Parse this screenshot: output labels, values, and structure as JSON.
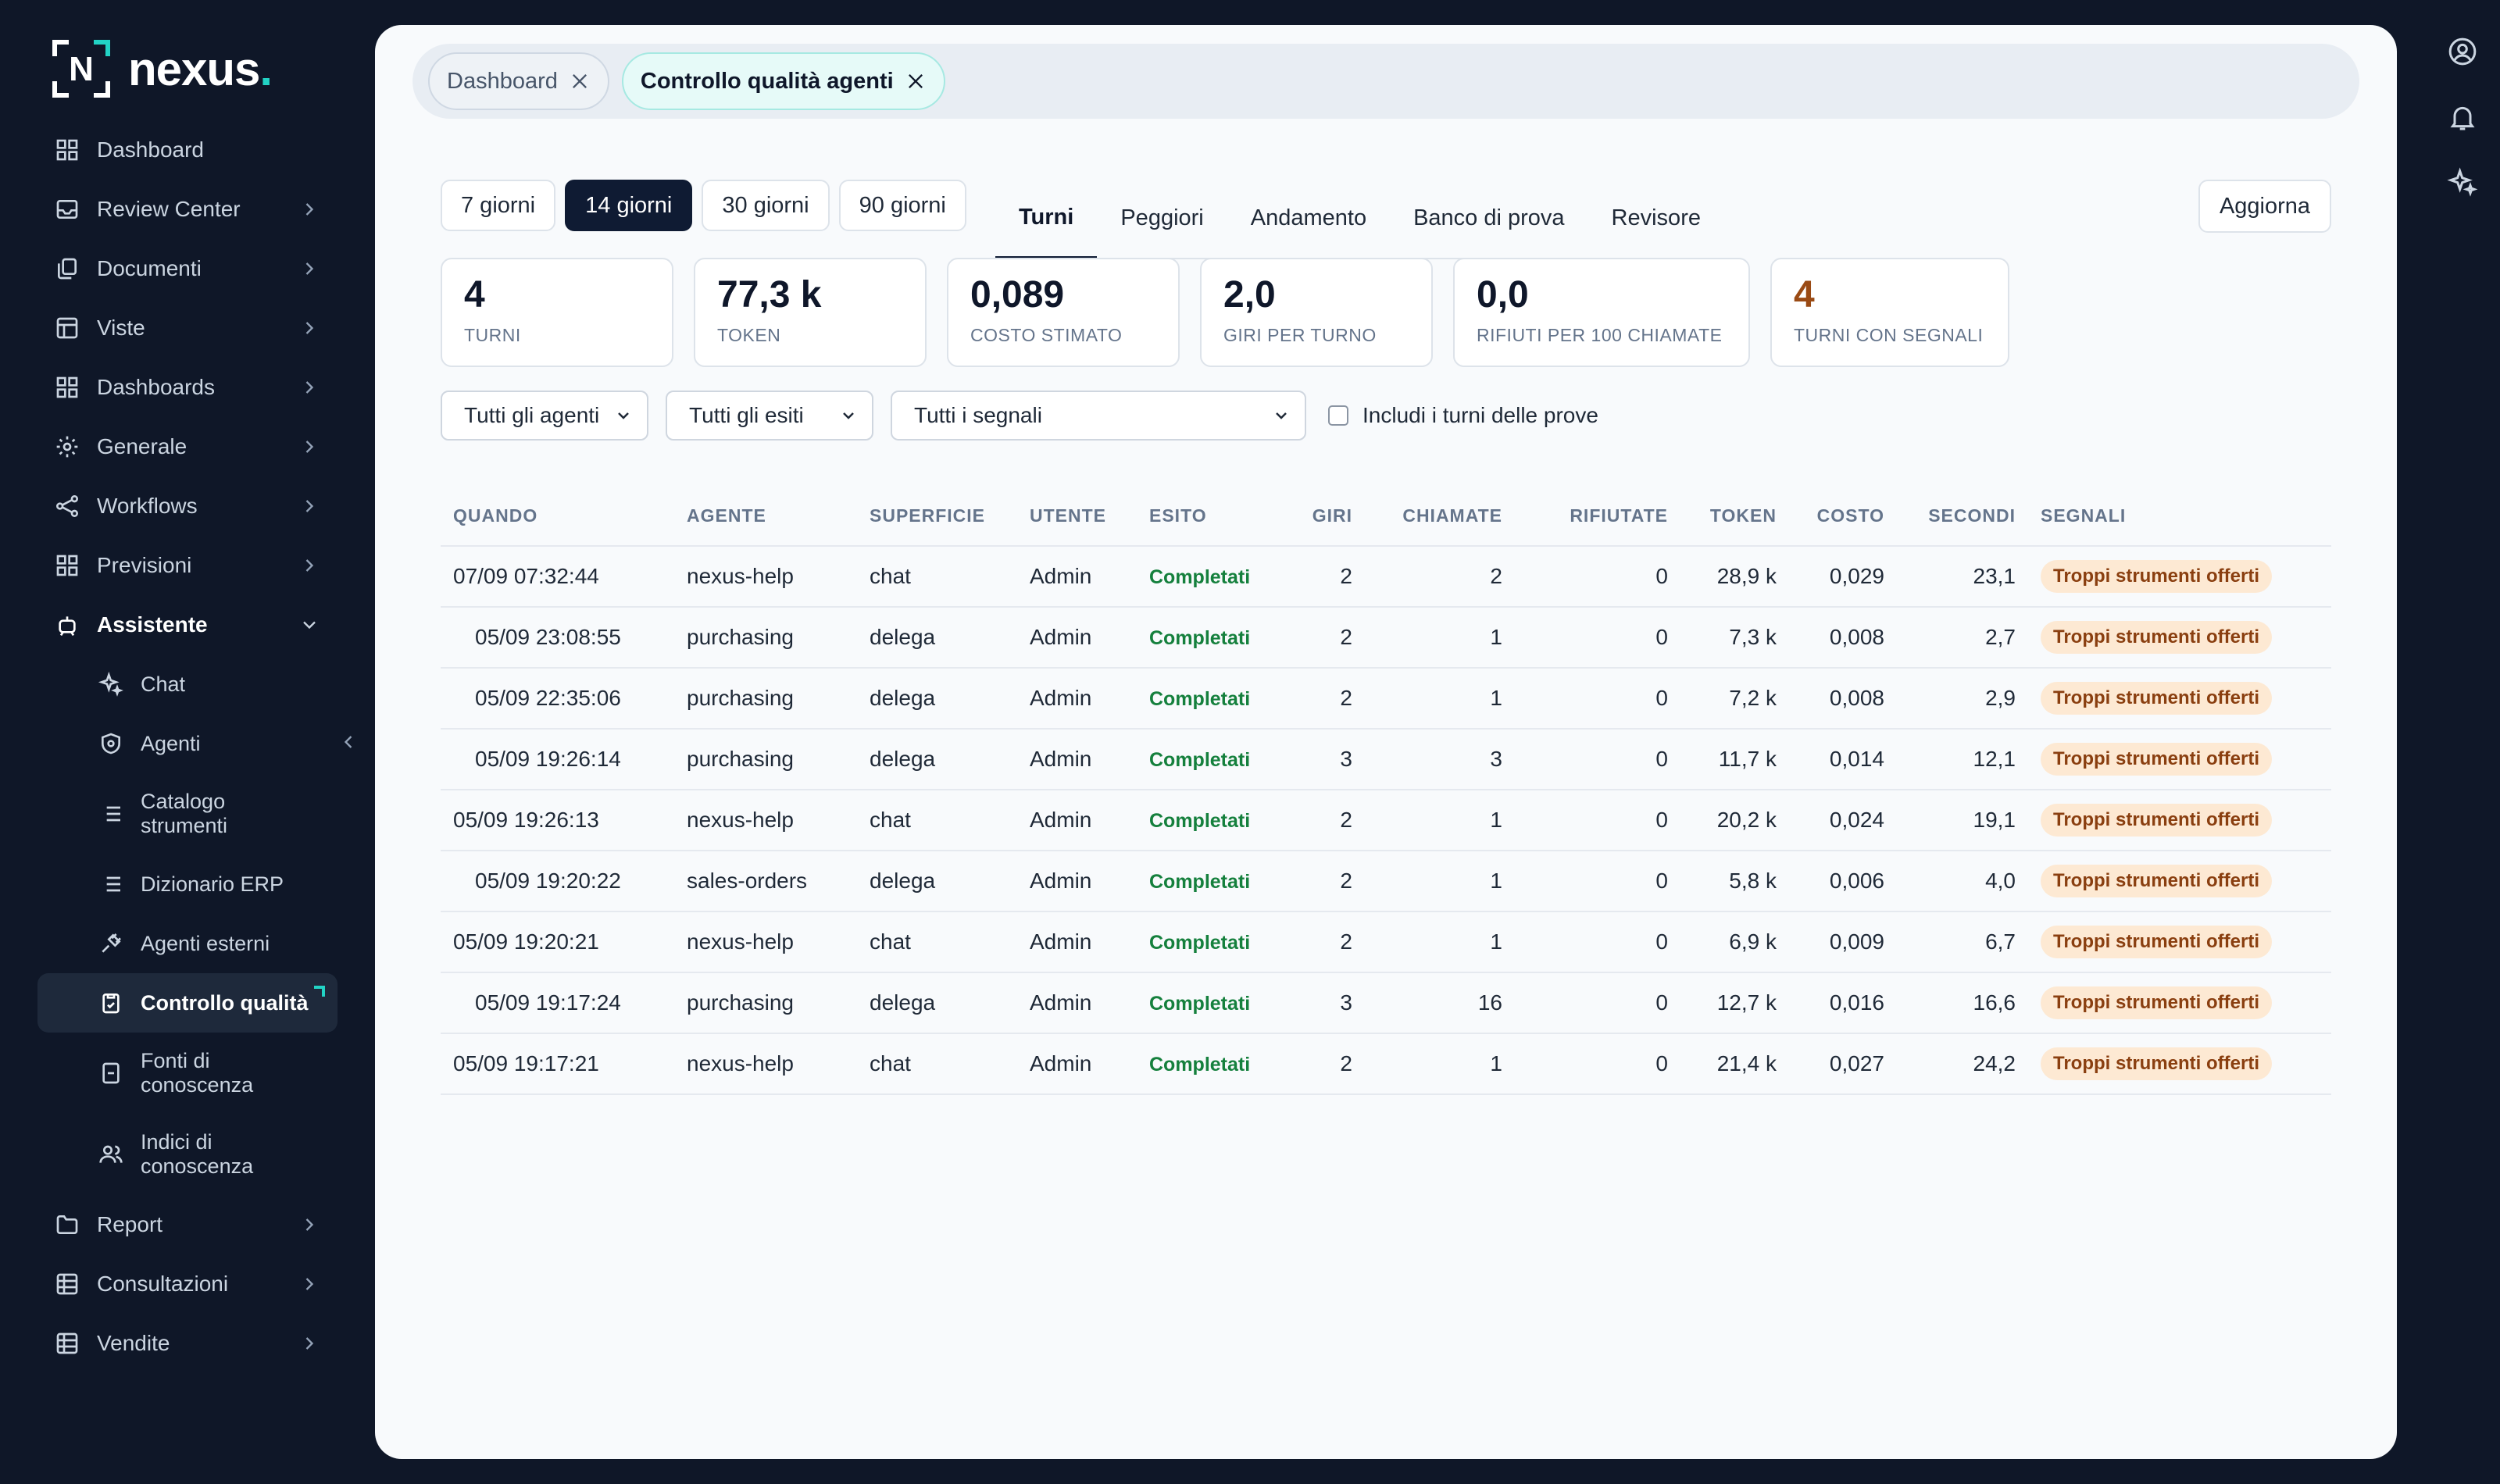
{
  "brand": {
    "name": "nexus",
    "dot": ".",
    "mark": "N",
    "accent": "#22d3c5"
  },
  "sidebar": {
    "items": [
      {
        "id": "dashboard",
        "label": "Dashboard",
        "icon": "grid-icon",
        "chevron": false
      },
      {
        "id": "review-center",
        "label": "Review Center",
        "icon": "inbox-icon",
        "chevron": true
      },
      {
        "id": "documenti",
        "label": "Documenti",
        "icon": "copy-icon",
        "chevron": true
      },
      {
        "id": "viste",
        "label": "Viste",
        "icon": "table-icon",
        "chevron": true
      },
      {
        "id": "dashboards",
        "label": "Dashboards",
        "icon": "grid-icon",
        "chevron": true
      },
      {
        "id": "generale",
        "label": "Generale",
        "icon": "gear-icon",
        "chevron": true
      },
      {
        "id": "workflows",
        "label": "Workflows",
        "icon": "share-icon",
        "chevron": true
      },
      {
        "id": "previsioni",
        "label": "Previsioni",
        "icon": "grid-icon",
        "chevron": true
      },
      {
        "id": "assistente",
        "label": "Assistente",
        "icon": "bot-icon",
        "chevron": true
      }
    ],
    "assistente_sub": [
      {
        "id": "chat",
        "label": "Chat",
        "icon": "sparkle-icon"
      },
      {
        "id": "agenti",
        "label": "Agenti",
        "icon": "shield-icon"
      },
      {
        "id": "catalogo",
        "label": "Catalogo strumenti",
        "icon": "list-icon"
      },
      {
        "id": "dizionario",
        "label": "Dizionario ERP",
        "icon": "list-icon"
      },
      {
        "id": "agenti-esterni",
        "label": "Agenti esterni",
        "icon": "plug-icon"
      },
      {
        "id": "controllo",
        "label": "Controllo qualità",
        "icon": "clipboard-check-icon"
      },
      {
        "id": "fonti",
        "label": "Fonti di conoscenza",
        "icon": "book-icon"
      },
      {
        "id": "indici",
        "label": "Indici di conoscenza",
        "icon": "users-icon"
      }
    ],
    "bottom_items": [
      {
        "id": "report",
        "label": "Report",
        "icon": "folder-icon"
      },
      {
        "id": "consultazioni",
        "label": "Consultazioni",
        "icon": "table-icon"
      },
      {
        "id": "vendite",
        "label": "Vendite",
        "icon": "table-icon"
      }
    ]
  },
  "doc_tabs": [
    {
      "label": "Dashboard",
      "active": false
    },
    {
      "label": "Controllo qualità agenti",
      "active": true
    }
  ],
  "ranges": [
    {
      "label": "7 giorni",
      "selected": false
    },
    {
      "label": "14 giorni",
      "selected": true
    },
    {
      "label": "30 giorni",
      "selected": false
    },
    {
      "label": "90 giorni",
      "selected": false
    }
  ],
  "view_tabs": [
    {
      "label": "Turni",
      "selected": true
    },
    {
      "label": "Peggiori",
      "selected": false
    },
    {
      "label": "Andamento",
      "selected": false
    },
    {
      "label": "Banco di prova",
      "selected": false
    },
    {
      "label": "Revisore",
      "selected": false
    }
  ],
  "refresh_label": "Aggiorna",
  "kpis": [
    {
      "value": "4",
      "label": "TURNI",
      "warn": false
    },
    {
      "value": "77,3 k",
      "label": "TOKEN",
      "warn": false
    },
    {
      "value": "0,089",
      "label": "COSTO STIMATO",
      "warn": false
    },
    {
      "value": "2,0",
      "label": "GIRI PER TURNO",
      "warn": false
    },
    {
      "value": "0,0",
      "label": "RIFIUTI PER 100 CHIAMATE",
      "warn": false
    },
    {
      "value": "4",
      "label": "TURNI CON SEGNALI",
      "warn": true
    }
  ],
  "filters": {
    "agent": "Tutti gli agenti",
    "outcome": "Tutti gli esiti",
    "signal": "Tutti i segnali",
    "include_tests_label": "Includi i turni delle prove",
    "include_tests_checked": false
  },
  "table": {
    "headers": {
      "when": "QUANDO",
      "agent": "AGENTE",
      "surface": "SUPERFICIE",
      "user": "UTENTE",
      "outcome": "ESITO",
      "turns": "GIRI",
      "calls": "CHIAMATE",
      "refused": "RIFIUTATE",
      "tokens": "TOKEN",
      "cost": "COSTO",
      "seconds": "SECONDI",
      "signals": "SEGNALI"
    },
    "rows": [
      {
        "when": "07/09 07:32:44",
        "child": false,
        "agent": "nexus-help",
        "surface": "chat",
        "user": "Admin",
        "outcome": "Completati",
        "turns": "2",
        "calls": "2",
        "refused": "0",
        "tokens": "28,9 k",
        "cost": "0,029",
        "seconds": "23,1",
        "signal": "Troppi strumenti offerti"
      },
      {
        "when": "05/09 23:08:55",
        "child": true,
        "agent": "purchasing",
        "surface": "delega",
        "user": "Admin",
        "outcome": "Completati",
        "turns": "2",
        "calls": "1",
        "refused": "0",
        "tokens": "7,3 k",
        "cost": "0,008",
        "seconds": "2,7",
        "signal": "Troppi strumenti offerti"
      },
      {
        "when": "05/09 22:35:06",
        "child": true,
        "agent": "purchasing",
        "surface": "delega",
        "user": "Admin",
        "outcome": "Completati",
        "turns": "2",
        "calls": "1",
        "refused": "0",
        "tokens": "7,2 k",
        "cost": "0,008",
        "seconds": "2,9",
        "signal": "Troppi strumenti offerti"
      },
      {
        "when": "05/09 19:26:14",
        "child": true,
        "agent": "purchasing",
        "surface": "delega",
        "user": "Admin",
        "outcome": "Completati",
        "turns": "3",
        "calls": "3",
        "refused": "0",
        "tokens": "11,7 k",
        "cost": "0,014",
        "seconds": "12,1",
        "signal": "Troppi strumenti offerti"
      },
      {
        "when": "05/09 19:26:13",
        "child": false,
        "agent": "nexus-help",
        "surface": "chat",
        "user": "Admin",
        "outcome": "Completati",
        "turns": "2",
        "calls": "1",
        "refused": "0",
        "tokens": "20,2 k",
        "cost": "0,024",
        "seconds": "19,1",
        "signal": "Troppi strumenti offerti"
      },
      {
        "when": "05/09 19:20:22",
        "child": true,
        "agent": "sales-orders",
        "surface": "delega",
        "user": "Admin",
        "outcome": "Completati",
        "turns": "2",
        "calls": "1",
        "refused": "0",
        "tokens": "5,8 k",
        "cost": "0,006",
        "seconds": "4,0",
        "signal": "Troppi strumenti offerti"
      },
      {
        "when": "05/09 19:20:21",
        "child": false,
        "agent": "nexus-help",
        "surface": "chat",
        "user": "Admin",
        "outcome": "Completati",
        "turns": "2",
        "calls": "1",
        "refused": "0",
        "tokens": "6,9 k",
        "cost": "0,009",
        "seconds": "6,7",
        "signal": "Troppi strumenti offerti"
      },
      {
        "when": "05/09 19:17:24",
        "child": true,
        "agent": "purchasing",
        "surface": "delega",
        "user": "Admin",
        "outcome": "Completati",
        "turns": "3",
        "calls": "16",
        "refused": "0",
        "tokens": "12,7 k",
        "cost": "0,016",
        "seconds": "16,6",
        "signal": "Troppi strumenti offerti"
      },
      {
        "when": "05/09 19:17:21",
        "child": false,
        "agent": "nexus-help",
        "surface": "chat",
        "user": "Admin",
        "outcome": "Completati",
        "turns": "2",
        "calls": "1",
        "refused": "0",
        "tokens": "21,4 k",
        "cost": "0,027",
        "seconds": "24,2",
        "signal": "Troppi strumenti offerti"
      }
    ]
  },
  "colors": {
    "sidebar_bg": "#0f1728",
    "primary": "#0f1b33",
    "success": "#15803d",
    "badge_bg": "#fde9d3",
    "badge_text": "#8a3f10",
    "warn": "#9a4a14"
  }
}
